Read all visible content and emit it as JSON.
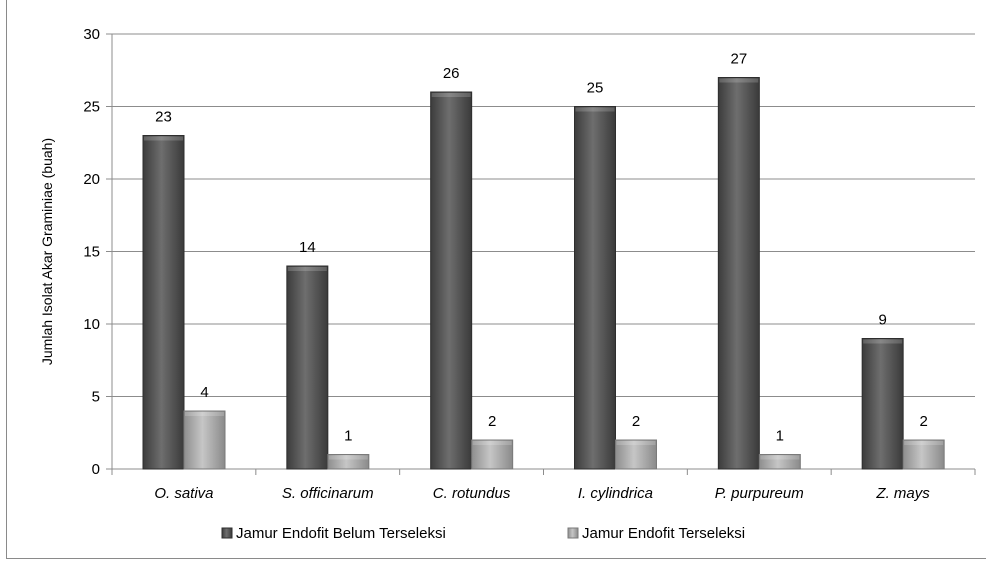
{
  "chart_data": {
    "type": "bar",
    "ylabel": "Jumlah Isolat Akar Graminiae (buah)",
    "xlabel": "",
    "categories": [
      "O. sativa",
      "S. officinarum",
      "C. rotundus",
      "I. cylindrica",
      "P. purpureum",
      "Z. mays"
    ],
    "series": [
      {
        "name": "Jamur Endofit Belum Terseleksi",
        "values": [
          23,
          14,
          26,
          25,
          27,
          9
        ],
        "color": "#555555"
      },
      {
        "name": "Jamur Endofit Terseleksi",
        "values": [
          4,
          1,
          2,
          2,
          1,
          2
        ],
        "color": "#a6a6a6"
      }
    ],
    "ylim": [
      0,
      30
    ],
    "yticks": [
      0,
      5,
      10,
      15,
      20,
      25,
      30
    ],
    "grid": true,
    "legend_position": "bottom",
    "data_labels": true
  }
}
